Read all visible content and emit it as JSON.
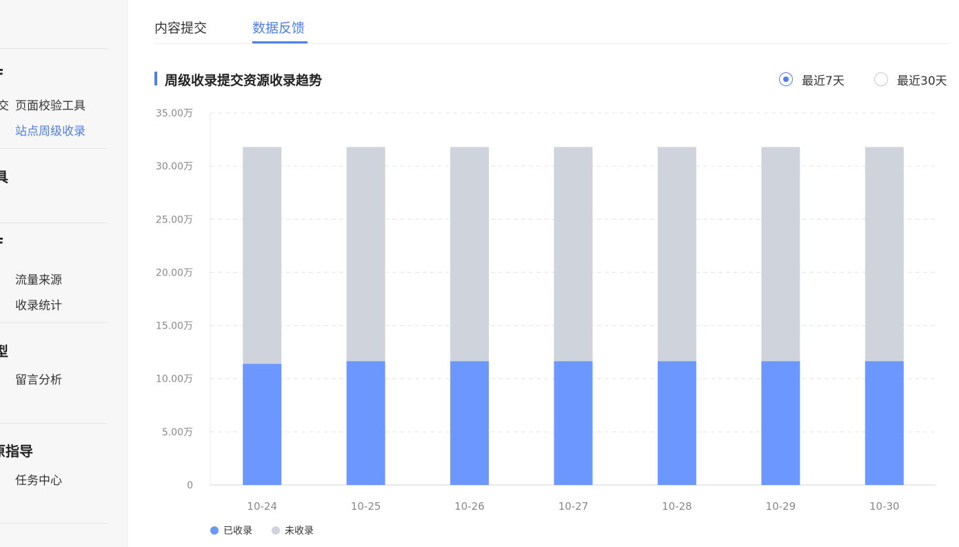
{
  "sidebar": {
    "heads": [
      "F",
      "具",
      "F",
      "型",
      "原指导"
    ],
    "frag_submit": "交",
    "items": [
      {
        "label": "页面校验工具",
        "active": false
      },
      {
        "label": "站点周级收录",
        "active": true
      },
      {
        "label": "流量来源",
        "active": false
      },
      {
        "label": "收录统计",
        "active": false
      },
      {
        "label": "留言分析",
        "active": false
      },
      {
        "label": "任务中心",
        "active": false
      }
    ]
  },
  "tabs": [
    {
      "label": "内容提交",
      "active": false
    },
    {
      "label": "数据反馈",
      "active": true
    }
  ],
  "section": {
    "title": "周级收录提交资源收录趋势"
  },
  "range": {
    "options": [
      {
        "label": "最近7天",
        "checked": true
      },
      {
        "label": "最近30天",
        "checked": false
      }
    ]
  },
  "colors": {
    "accent": "#4e7ee6",
    "indexed": "#6b97fe",
    "not_indexed": "#cfd3dc"
  },
  "chart_data": {
    "type": "bar",
    "stacked": true,
    "categories": [
      "10-24",
      "10-25",
      "10-26",
      "10-27",
      "10-28",
      "10-29",
      "10-30"
    ],
    "series": [
      {
        "name": "已收录",
        "values": [
          11.4,
          11.65,
          11.65,
          11.65,
          11.65,
          11.65,
          11.65
        ]
      },
      {
        "name": "未收录",
        "values": [
          20.4,
          20.15,
          20.15,
          20.15,
          20.15,
          20.15,
          20.15
        ]
      }
    ],
    "y_ticks": [
      "0",
      "5.00万",
      "10.00万",
      "15.00万",
      "20.00万",
      "25.00万",
      "30.00万",
      "35.00万"
    ],
    "ylim": [
      0,
      35
    ],
    "grid": true,
    "legend_position": "bottom-left"
  }
}
